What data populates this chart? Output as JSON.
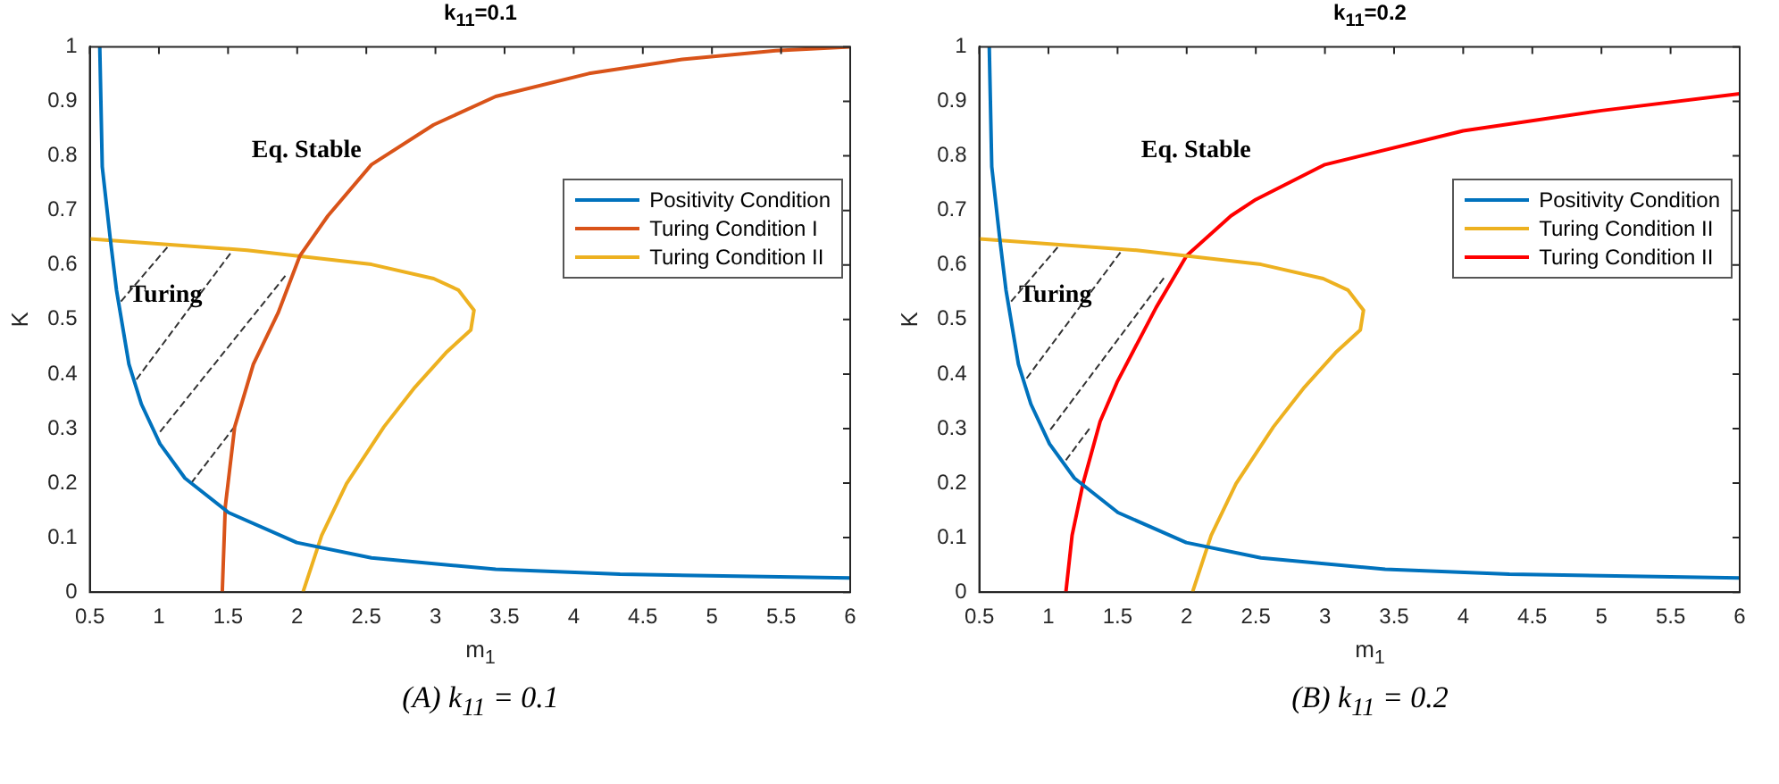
{
  "chart_data": [
    {
      "type": "line",
      "title": "k$_{11}$=0.1",
      "xlabel": "m$_{1}$",
      "ylabel": "K",
      "xlim": [
        0.5,
        6
      ],
      "ylim": [
        0,
        1
      ],
      "xticks": [
        0.5,
        1,
        1.5,
        2,
        2.5,
        3,
        3.5,
        4,
        4.5,
        5,
        5.5,
        6
      ],
      "yticks": [
        0,
        0.1,
        0.2,
        0.3,
        0.4,
        0.5,
        0.6,
        0.7,
        0.8,
        0.9,
        1
      ],
      "grid": false,
      "legend": "top right",
      "series": [
        {
          "name": "Positivity Condition",
          "color": "#0072bd",
          "x": [
            0.572,
            0.59,
            0.648,
            0.693,
            0.783,
            0.873,
            1.008,
            1.188,
            1.503,
            1.997,
            2.537,
            3.436,
            4.335,
            6
          ],
          "values": [
            1,
            0.78,
            0.648,
            0.554,
            0.418,
            0.345,
            0.272,
            0.209,
            0.146,
            0.091,
            0.063,
            0.042,
            0.033,
            0.026
          ]
        },
        {
          "name": "Turing Condition I",
          "color": "#d95319",
          "x": [
            1.458,
            1.48,
            1.548,
            1.683,
            1.862,
            2.02,
            2.222,
            2.537,
            2.987,
            3.436,
            4.11,
            4.785,
            5.46,
            6
          ],
          "values": [
            0,
            0.157,
            0.303,
            0.418,
            0.512,
            0.617,
            0.69,
            0.784,
            0.857,
            0.909,
            0.951,
            0.977,
            0.993,
            1
          ]
        },
        {
          "name": "Turing Condition II",
          "color": "#edb120",
          "x": [
            0.5,
            1.638,
            2.537,
            2.987,
            3.166,
            3.279,
            3.256,
            3.076,
            2.852,
            2.627,
            2.357,
            2.177,
            2.042
          ],
          "values": [
            0.648,
            0.627,
            0.601,
            0.575,
            0.554,
            0.517,
            0.481,
            0.439,
            0.376,
            0.303,
            0.199,
            0.104,
            0
          ]
        },
        {
          "color": "#333333",
          "line_style": "dashed",
          "x": [
            0.725,
            1.076
          ],
          "values": [
            0.533,
            0.637
          ]
        },
        {
          "color": "#333333",
          "line_style": "dashed",
          "x": [
            0.837,
            1.525
          ],
          "values": [
            0.39,
            0.624
          ]
        },
        {
          "color": "#333333",
          "line_style": "dashed",
          "x": [
            1.008,
            1.93
          ],
          "values": [
            0.294,
            0.585
          ]
        },
        {
          "color": "#333333",
          "line_style": "dashed",
          "x": [
            1.233,
            1.561
          ],
          "values": [
            0.2,
            0.308
          ]
        }
      ],
      "annotations": [
        "Eq. Stable",
        "Turing",
        "(A) k$_{11}$ = 0.1"
      ]
    },
    {
      "type": "line",
      "title": "k$_{11}$=0.2",
      "xlabel": "m$_{1}$",
      "ylabel": "K",
      "xlim": [
        0.5,
        6
      ],
      "ylim": [
        0,
        1
      ],
      "xticks": [
        0.5,
        1,
        1.5,
        2,
        2.5,
        3,
        3.5,
        4,
        4.5,
        5,
        5.5,
        6
      ],
      "yticks": [
        0,
        0.1,
        0.2,
        0.3,
        0.4,
        0.5,
        0.6,
        0.7,
        0.8,
        0.9,
        1
      ],
      "grid": false,
      "legend": "top right",
      "series": [
        {
          "name": "Positivity Condition",
          "color": "#0072bd",
          "x": [
            0.572,
            0.59,
            0.648,
            0.693,
            0.783,
            0.873,
            1.008,
            1.188,
            1.503,
            1.997,
            2.537,
            3.436,
            4.335,
            6
          ],
          "values": [
            1,
            0.78,
            0.648,
            0.554,
            0.418,
            0.345,
            0.272,
            0.209,
            0.146,
            0.091,
            0.063,
            0.042,
            0.033,
            0.026
          ]
        },
        {
          "name": "Turing Condition II",
          "color": "#edb120",
          "x": [
            0.5,
            1.638,
            2.537,
            2.987,
            3.166,
            3.279,
            3.256,
            3.076,
            2.852,
            2.627,
            2.357,
            2.177,
            2.042
          ],
          "values": [
            0.648,
            0.627,
            0.601,
            0.575,
            0.554,
            0.517,
            0.481,
            0.439,
            0.376,
            0.303,
            0.199,
            0.104,
            0
          ]
        },
        {
          "name": "Turing Condition II",
          "color": "#ff0000",
          "x": [
            1.126,
            1.171,
            1.25,
            1.374,
            1.5,
            1.779,
            2,
            2.32,
            2.5,
            3,
            4,
            5,
            6
          ],
          "values": [
            0,
            0.104,
            0.199,
            0.313,
            0.387,
            0.522,
            0.617,
            0.69,
            0.72,
            0.784,
            0.846,
            0.883,
            0.914
          ]
        },
        {
          "color": "#333333",
          "line_style": "dashed",
          "x": [
            0.73,
            1.072
          ],
          "values": [
            0.533,
            0.634
          ]
        },
        {
          "color": "#333333",
          "line_style": "dashed",
          "x": [
            0.842,
            1.523
          ],
          "values": [
            0.392,
            0.624
          ]
        },
        {
          "color": "#333333",
          "line_style": "dashed",
          "x": [
            1.014,
            1.847
          ],
          "values": [
            0.298,
            0.58
          ]
        },
        {
          "color": "#333333",
          "line_style": "dashed",
          "x": [
            1.126,
            1.306
          ],
          "values": [
            0.242,
            0.303
          ]
        }
      ],
      "annotations": [
        "Eq. Stable",
        "Turing",
        "(B) k$_{11}$ = 0.2"
      ]
    }
  ]
}
